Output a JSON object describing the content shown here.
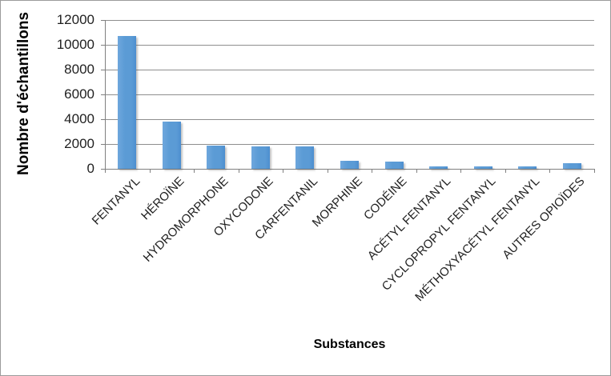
{
  "chart_data": {
    "type": "bar",
    "title": "",
    "categories": [
      "FENTANYL",
      "HÉROÏNE",
      "HYDROMORPHONE",
      "OXYCODONE",
      "CARFENTANIL",
      "MORPHINE",
      "CODÉINE",
      "ACÉTYL FENTANYL",
      "CYCLOPROPYL FENTANYL",
      "MÉTHOXYACÉTYL FENTANYL",
      "AUTRES OPIOÏDES"
    ],
    "values": [
      10700,
      3800,
      1900,
      1800,
      1800,
      650,
      600,
      200,
      180,
      180,
      450
    ],
    "xlabel": "Substances",
    "ylabel": "Nombre d'échantillons",
    "ylim": [
      0,
      12000
    ],
    "yticks": [
      0,
      2000,
      4000,
      6000,
      8000,
      10000,
      12000
    ],
    "grid": true,
    "legend": false,
    "colors": {
      "bar": "#5b9bd5",
      "gridline": "#8e8e8e",
      "axis": "#808080",
      "text": "#1f1f1f",
      "border": "#9b9b9b",
      "background": "#ffffff"
    }
  }
}
